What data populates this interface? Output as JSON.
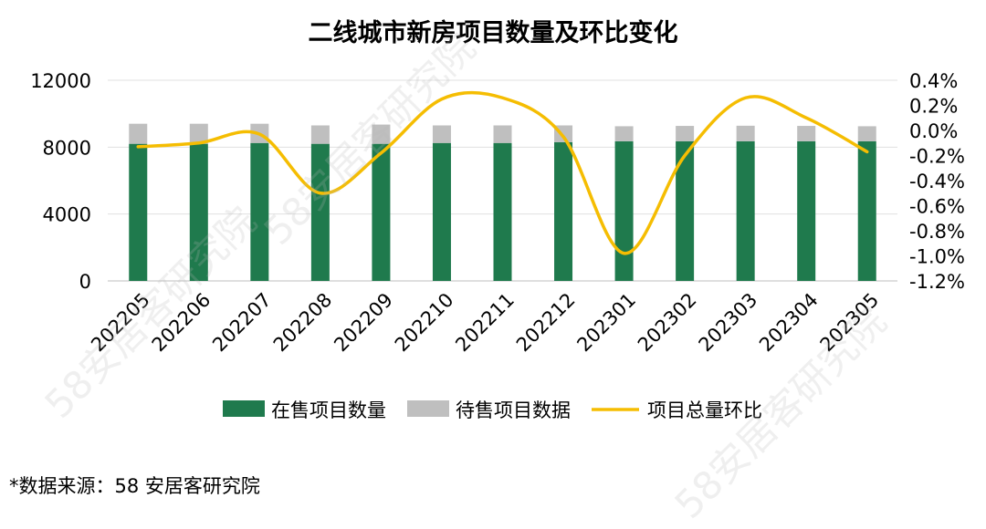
{
  "title": "二线城市新房项目数量及环比变化",
  "source_note": "*数据来源：58 安居客研究院",
  "watermark_text": "58安居客研究院",
  "colors": {
    "on_sale": "#1f7a4d",
    "pending": "#bfbfbf",
    "ratio_line": "#f5bd02"
  },
  "chart_data": {
    "type": "bar",
    "categories": [
      "202205",
      "202206",
      "202207",
      "202208",
      "202209",
      "202210",
      "202211",
      "202212",
      "202301",
      "202302",
      "202303",
      "202304",
      "202305"
    ],
    "series": [
      {
        "name": "在售项目数量",
        "type": "bar",
        "stack": "total",
        "axis": "left",
        "values": [
          8200,
          8200,
          8250,
          8200,
          8200,
          8250,
          8250,
          8300,
          8350,
          8350,
          8350,
          8350,
          8350
        ]
      },
      {
        "name": "待售项目数据",
        "type": "bar",
        "stack": "total",
        "axis": "left",
        "values": [
          1200,
          1200,
          1150,
          1100,
          1150,
          1050,
          1050,
          1000,
          900,
          920,
          930,
          920,
          900
        ]
      },
      {
        "name": "项目总量环比",
        "type": "line",
        "axis": "right",
        "values": [
          -0.13,
          -0.1,
          -0.03,
          -0.5,
          -0.18,
          0.25,
          0.26,
          -0.05,
          -0.98,
          -0.2,
          0.26,
          0.1,
          -0.17
        ]
      }
    ],
    "y_left": {
      "min": 0,
      "max": 12000,
      "ticks": [
        0,
        4000,
        8000,
        12000
      ],
      "tick_labels": [
        "0",
        "4000",
        "8000",
        "12000"
      ]
    },
    "y_right": {
      "min": -1.2,
      "max": 0.4,
      "ticks": [
        0.4,
        0.2,
        0.0,
        -0.2,
        -0.4,
        -0.6,
        -0.8,
        -1.0,
        -1.2
      ],
      "tick_labels": [
        "0.4%",
        "0.2%",
        "0.0%",
        "-0.2%",
        "-0.4%",
        "-0.6%",
        "-0.8%",
        "-1.0%",
        "-1.2%"
      ]
    },
    "grid": true,
    "legend_position": "bottom"
  }
}
